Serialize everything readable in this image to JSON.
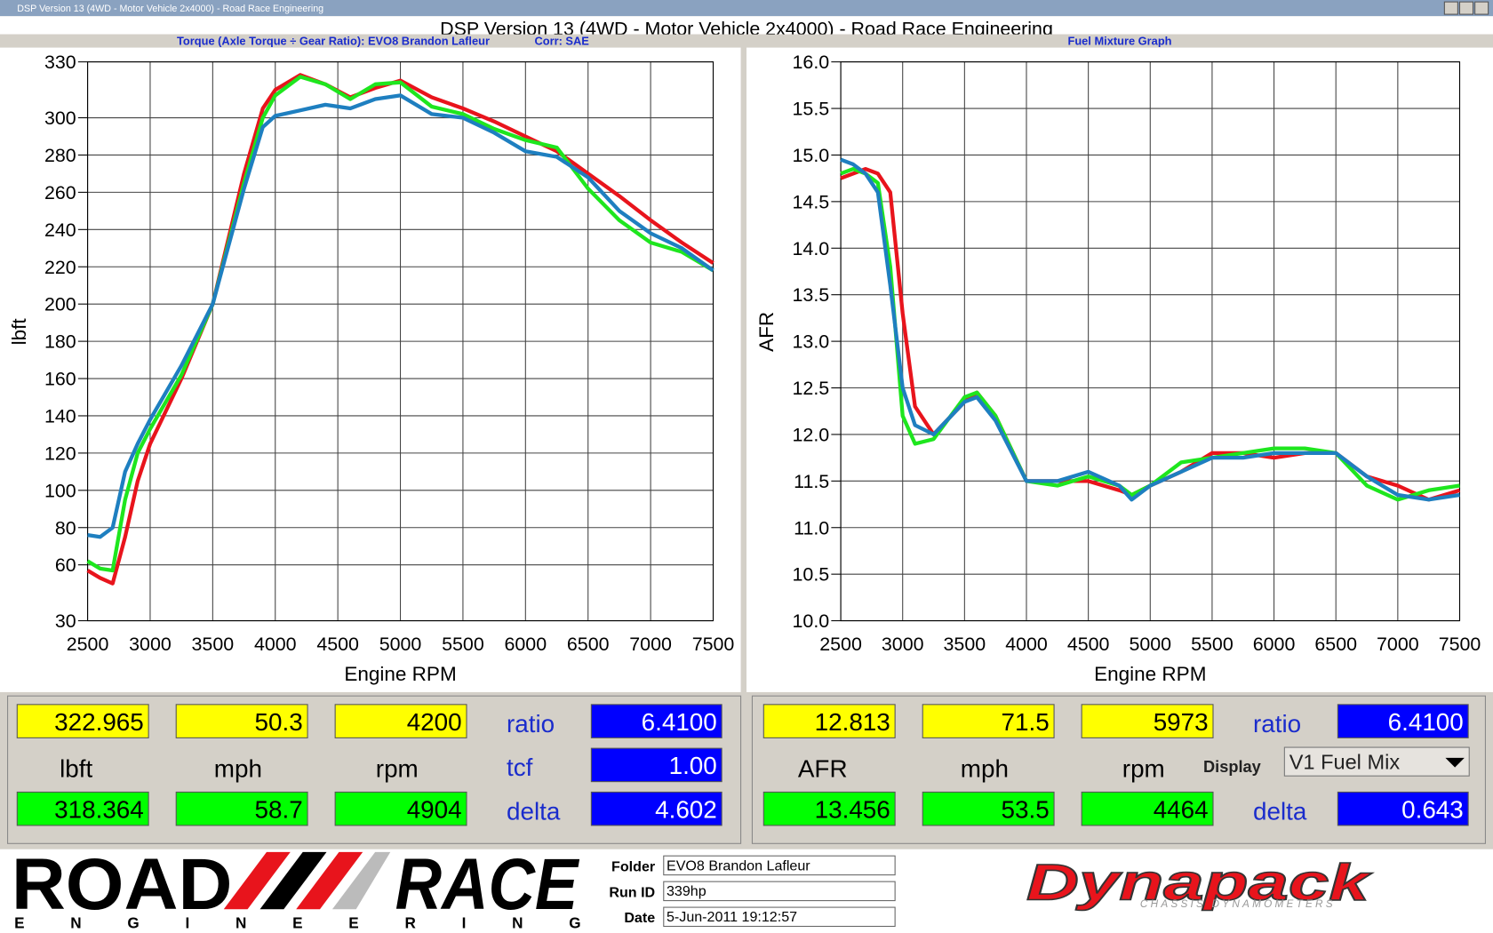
{
  "window": {
    "title": "DSP Version 13 (4WD - Motor Vehicle 2x4000) - Road Race Engineering"
  },
  "header": {
    "title": "DSP Version 13 (4WD - Motor Vehicle 2x4000) - Road Race Engineering"
  },
  "chart_data": [
    {
      "type": "line",
      "title": "Torque (Axle Torque ÷ Gear Ratio): EVO8 Brandon Lafleur",
      "subtitle": "Corr: SAE",
      "x_label": "Engine RPM",
      "y_label": "lbft",
      "x": [
        2500,
        2600,
        2700,
        2800,
        2900,
        3000,
        3250,
        3500,
        3750,
        3900,
        4000,
        4200,
        4400,
        4600,
        4800,
        5000,
        5250,
        5500,
        5750,
        6000,
        6250,
        6500,
        6750,
        7000,
        7250,
        7500
      ],
      "xlim": [
        2500,
        7500
      ],
      "xticks": [
        2500,
        3000,
        3500,
        4000,
        4500,
        5000,
        5500,
        6000,
        6500,
        7000,
        7500
      ],
      "ylim": [
        30,
        330
      ],
      "yticks": [
        30,
        60,
        80,
        100,
        120,
        140,
        160,
        180,
        200,
        220,
        240,
        260,
        280,
        300,
        330
      ],
      "grid": true,
      "series": [
        {
          "color": "#e8141c",
          "values": [
            57,
            53,
            50,
            75,
            105,
            125,
            160,
            200,
            270,
            305,
            315,
            323,
            318,
            311,
            316,
            320,
            311,
            305,
            298,
            290,
            282,
            270,
            258,
            245,
            233,
            222
          ]
        },
        {
          "color": "#1ee61e",
          "values": [
            62,
            58,
            57,
            95,
            120,
            133,
            162,
            200,
            265,
            300,
            312,
            322,
            318,
            310,
            318,
            319,
            306,
            302,
            294,
            288,
            284,
            262,
            245,
            233,
            228,
            218
          ]
        },
        {
          "color": "#1e7fc0",
          "values": [
            76,
            75,
            80,
            110,
            125,
            138,
            167,
            200,
            262,
            295,
            301,
            304,
            307,
            305,
            310,
            312,
            302,
            300,
            292,
            282,
            279,
            268,
            250,
            238,
            230,
            218
          ]
        }
      ]
    },
    {
      "type": "line",
      "title": "Fuel Mixture Graph",
      "x_label": "Engine RPM",
      "y_label": "AFR",
      "x": [
        2500,
        2600,
        2700,
        2800,
        2900,
        3000,
        3100,
        3250,
        3500,
        3600,
        3750,
        4000,
        4250,
        4500,
        4750,
        4850,
        5000,
        5250,
        5500,
        5750,
        6000,
        6250,
        6500,
        6750,
        7000,
        7250,
        7500
      ],
      "xlim": [
        2500,
        7500
      ],
      "xticks": [
        2500,
        3000,
        3500,
        4000,
        4500,
        5000,
        5500,
        6000,
        6500,
        7000,
        7500
      ],
      "ylim": [
        10,
        16
      ],
      "yticks": [
        {
          "value": 10,
          "label": "10.0"
        },
        10.5,
        {
          "value": 11,
          "label": "11.0"
        },
        11.5,
        {
          "value": 12,
          "label": "12.0"
        },
        12.5,
        {
          "value": 13,
          "label": "13.0"
        },
        13.5,
        {
          "value": 14,
          "label": "14.0"
        },
        14.5,
        {
          "value": 15,
          "label": "15.0"
        },
        15.5,
        {
          "value": 16,
          "label": "16.0"
        }
      ],
      "grid": true,
      "series": [
        {
          "color": "#e8141c",
          "values": [
            14.75,
            14.8,
            14.85,
            14.8,
            14.6,
            13.3,
            12.3,
            12.0,
            12.35,
            12.45,
            12.2,
            11.5,
            11.5,
            11.5,
            11.4,
            11.35,
            11.45,
            11.6,
            11.8,
            11.8,
            11.75,
            11.8,
            11.8,
            11.55,
            11.45,
            11.3,
            11.4
          ]
        },
        {
          "color": "#1ee61e",
          "values": [
            14.8,
            14.85,
            14.8,
            14.7,
            13.8,
            12.2,
            11.9,
            11.95,
            12.4,
            12.45,
            12.2,
            11.5,
            11.45,
            11.55,
            11.45,
            11.35,
            11.45,
            11.7,
            11.75,
            11.8,
            11.85,
            11.85,
            11.8,
            11.45,
            11.3,
            11.4,
            11.45
          ]
        },
        {
          "color": "#1e7fc0",
          "values": [
            14.95,
            14.9,
            14.8,
            14.6,
            13.6,
            12.5,
            12.1,
            12.0,
            12.35,
            12.4,
            12.15,
            11.5,
            11.5,
            11.6,
            11.45,
            11.3,
            11.45,
            11.6,
            11.75,
            11.75,
            11.8,
            11.8,
            11.8,
            11.55,
            11.35,
            11.3,
            11.35
          ]
        }
      ]
    }
  ],
  "readouts": [
    {
      "cursor_values": [
        "322.965",
        "50.3",
        "4200"
      ],
      "units": [
        "lbft",
        "mph",
        "rpm"
      ],
      "compare_values": [
        "318.364",
        "58.7",
        "4904"
      ],
      "side": [
        {
          "label": "ratio",
          "value": "6.4100"
        },
        {
          "label": "tcf",
          "value": "1.00"
        },
        {
          "label": "delta",
          "value": "4.602"
        }
      ]
    },
    {
      "cursor_values": [
        "12.813",
        "71.5",
        "5973"
      ],
      "units": [
        "AFR",
        "mph",
        "rpm"
      ],
      "compare_values": [
        "13.456",
        "53.5",
        "4464"
      ],
      "side": [
        {
          "label": "ratio",
          "value": "6.4100"
        },
        {
          "label": "delta",
          "value": "0.643"
        }
      ],
      "display_label": "Display",
      "display_value": "V1 Fuel Mix"
    }
  ],
  "footer": {
    "logo_road": "ROAD",
    "logo_race": "RACE",
    "logo_engineering": "ENGINEERING",
    "fields": [
      {
        "label": "Folder",
        "value": "EVO8 Brandon Lafleur"
      },
      {
        "label": "Run ID",
        "value": "339hp"
      },
      {
        "label": "Date",
        "value": "5-Jun-2011 19:12:57"
      }
    ],
    "brand": "Dynapack",
    "brand_tagline": "CHASSIS DYNAMOMETERS"
  }
}
